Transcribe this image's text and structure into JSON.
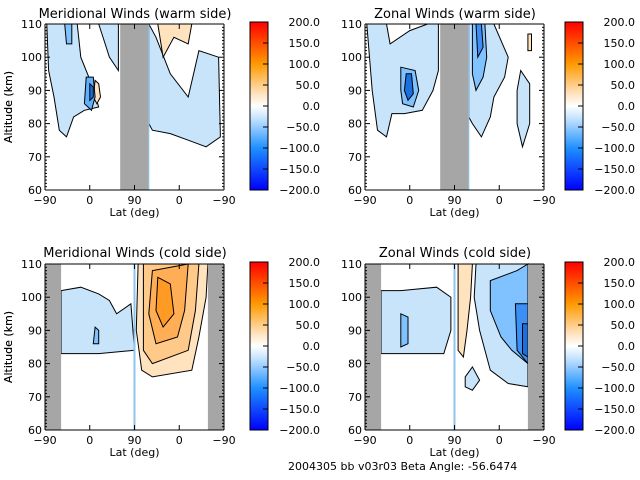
{
  "chart_data": [
    {
      "type": "heatmap",
      "title": "Meridional Winds (warm side)",
      "xlabel": "Lat (deg)",
      "ylabel": "Altitude (km)",
      "xtick_labels": [
        "-90",
        "0",
        "90",
        "0",
        "-90"
      ],
      "ytick_labels": [
        "60",
        "70",
        "80",
        "90",
        "100",
        "110"
      ],
      "ylim": [
        60,
        110
      ],
      "no_data_bands": [
        [
          0.42,
          0.58
        ]
      ],
      "colorbar": {
        "min": -200,
        "max": 200,
        "tick_labels": [
          "200.0",
          "150.0",
          "100.0",
          "50.0",
          "0.0",
          "-50.0",
          "-100.0",
          "-150.0",
          "-200.0"
        ]
      },
      "regions": [
        {
          "level": -25,
          "approx": "blue patches 75-110 km on left half; broad blue region 72-100 km on right half"
        },
        {
          "level": 25,
          "approx": "small orange patches near 100-110 km right of gap"
        },
        {
          "level": -100,
          "approx": "small intense vortex near 0 lat, 90 km"
        }
      ]
    },
    {
      "type": "heatmap",
      "title": "Zonal Winds (warm side)",
      "xlabel": "Lat (deg)",
      "ylabel": "Altitude (km)",
      "xtick_labels": [
        "-90",
        "0",
        "90",
        "0",
        "-90"
      ],
      "ytick_labels": [
        "60",
        "70",
        "80",
        "90",
        "100",
        "110"
      ],
      "ylim": [
        60,
        110
      ],
      "no_data_bands": [
        [
          0.42,
          0.58
        ]
      ],
      "colorbar": {
        "min": -200,
        "max": 200,
        "tick_labels": [
          "200.0",
          "150.0",
          "100.0",
          "50.0",
          "0.0",
          "-50.0",
          "-100.0",
          "-150.0",
          "-200.0"
        ]
      },
      "regions": [
        {
          "level": -25,
          "approx": "westward winds 75-110 km both halves"
        },
        {
          "level": -150,
          "approx": "core near 0 lat, 88-95 km"
        }
      ]
    },
    {
      "type": "heatmap",
      "title": "Meridional Winds (cold side)",
      "xlabel": "Lat (deg)",
      "ylabel": "Altitude (km)",
      "xtick_labels": [
        "-90",
        "0",
        "90",
        "0",
        "-90"
      ],
      "ytick_labels": [
        "60",
        "70",
        "80",
        "90",
        "100",
        "110"
      ],
      "ylim": [
        60,
        110
      ],
      "no_data_bands": [
        [
          0.0,
          0.09
        ],
        [
          0.91,
          1.0
        ]
      ],
      "colorbar": {
        "min": -200,
        "max": 200,
        "tick_labels": [
          "200.0",
          "150.0",
          "100.0",
          "50.0",
          "0.0",
          "-50.0",
          "-100.0",
          "-150.0",
          "-200.0"
        ]
      },
      "regions": [
        {
          "level": -25,
          "approx": "blue patches 83-103 km on left half"
        },
        {
          "level": 75,
          "approx": "strong orange region 78-110 km on right half"
        }
      ]
    },
    {
      "type": "heatmap",
      "title": "Zonal Winds (cold side)",
      "xlabel": "Lat (deg)",
      "ylabel": "Altitude (km)",
      "xtick_labels": [
        "-90",
        "0",
        "90",
        "0",
        "-90"
      ],
      "ytick_labels": [
        "60",
        "70",
        "80",
        "90",
        "100",
        "110"
      ],
      "ylim": [
        60,
        110
      ],
      "no_data_bands": [
        [
          0.0,
          0.09
        ],
        [
          0.91,
          1.0
        ]
      ],
      "colorbar": {
        "min": -200,
        "max": 200,
        "tick_labels": [
          "200.0",
          "150.0",
          "100.0",
          "50.0",
          "0.0",
          "-50.0",
          "-100.0",
          "-150.0",
          "-200.0"
        ]
      },
      "regions": [
        {
          "level": -25,
          "approx": "blue 83-103 km left half; blue 73-110 km right half"
        },
        {
          "level": 25,
          "approx": "orange column just right of 90"
        },
        {
          "level": -125,
          "approx": "intense core at right edge near 85-92 km"
        }
      ]
    }
  ],
  "footer": "2004305 bb v03r03   Beta Angle: -56.6474"
}
